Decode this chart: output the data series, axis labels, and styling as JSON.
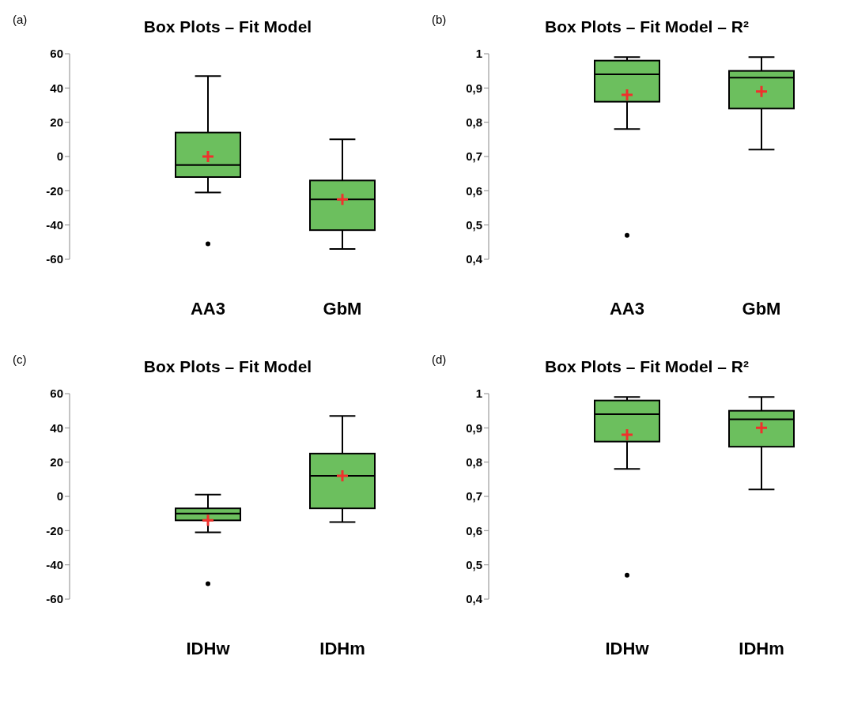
{
  "chart_data": [
    {
      "type": "box",
      "title": "Box Plots – Fit Model",
      "annotations": [
        "(a)"
      ],
      "categories": [
        "AA3",
        "GbM"
      ],
      "ylim": [
        -60,
        60
      ],
      "yticks": [
        -60,
        -40,
        -20,
        0,
        20,
        40,
        60
      ],
      "grid": false,
      "series": [
        {
          "color": "#6cbf5e",
          "boxes": [
            {
              "low": -21,
              "q1": -12,
              "median": -5,
              "q3": 14,
              "high": 47,
              "mean": 0,
              "outliers": [
                -51
              ]
            },
            {
              "low": -54,
              "q1": -43,
              "median": -25,
              "q3": -14,
              "high": 10,
              "mean": -25
            }
          ]
        }
      ]
    },
    {
      "type": "box",
      "title": "Box Plots – Fit Model – R²",
      "annotations": [
        "(b)"
      ],
      "categories": [
        "AA3",
        "GbM"
      ],
      "ylim": [
        0.4,
        1
      ],
      "yticks": [
        {
          "value": 0.4,
          "label": "0,4"
        },
        {
          "value": 0.5,
          "label": "0,5"
        },
        {
          "value": 0.6,
          "label": "0,6"
        },
        {
          "value": 0.7,
          "label": "0,7"
        },
        {
          "value": 0.8,
          "label": "0,8"
        },
        {
          "value": 0.9,
          "label": "0,9"
        },
        {
          "value": 1,
          "label": "1"
        }
      ],
      "grid": false,
      "series": [
        {
          "color": "#6cbf5e",
          "boxes": [
            {
              "low": 0.78,
              "q1": 0.86,
              "median": 0.94,
              "q3": 0.98,
              "high": 0.99,
              "mean": 0.88,
              "outliers": [
                0.47
              ]
            },
            {
              "low": 0.72,
              "q1": 0.84,
              "median": 0.93,
              "q3": 0.95,
              "high": 0.99,
              "mean": 0.89
            }
          ]
        }
      ]
    },
    {
      "type": "box",
      "title": "Box Plots – Fit Model",
      "annotations": [
        "(c)"
      ],
      "categories": [
        "IDHw",
        "IDHm"
      ],
      "ylim": [
        -60,
        60
      ],
      "yticks": [
        -60,
        -40,
        -20,
        0,
        20,
        40,
        60
      ],
      "grid": false,
      "series": [
        {
          "color": "#6cbf5e",
          "boxes": [
            {
              "low": -21,
              "q1": -14,
              "median": -10,
              "q3": -7,
              "high": 1,
              "mean": -14,
              "outliers": [
                -51
              ]
            },
            {
              "low": -15,
              "q1": -7,
              "median": 12,
              "q3": 25,
              "high": 47,
              "mean": 12
            }
          ]
        }
      ]
    },
    {
      "type": "box",
      "title": "Box Plots – Fit Model – R²",
      "annotations": [
        "(d)"
      ],
      "categories": [
        "IDHw",
        "IDHm"
      ],
      "ylim": [
        0.4,
        1
      ],
      "yticks": [
        {
          "value": 0.4,
          "label": "0,4"
        },
        {
          "value": 0.5,
          "label": "0,5"
        },
        {
          "value": 0.6,
          "label": "0,6"
        },
        {
          "value": 0.7,
          "label": "0,7"
        },
        {
          "value": 0.8,
          "label": "0,8"
        },
        {
          "value": 0.9,
          "label": "0,9"
        },
        {
          "value": 1,
          "label": "1"
        }
      ],
      "grid": false,
      "series": [
        {
          "color": "#6cbf5e",
          "boxes": [
            {
              "low": 0.78,
              "q1": 0.86,
              "median": 0.94,
              "q3": 0.98,
              "high": 0.99,
              "mean": 0.88,
              "outliers": [
                0.47
              ]
            },
            {
              "low": 0.72,
              "q1": 0.845,
              "median": 0.925,
              "q3": 0.95,
              "high": 0.99,
              "mean": 0.9
            }
          ]
        }
      ]
    }
  ]
}
